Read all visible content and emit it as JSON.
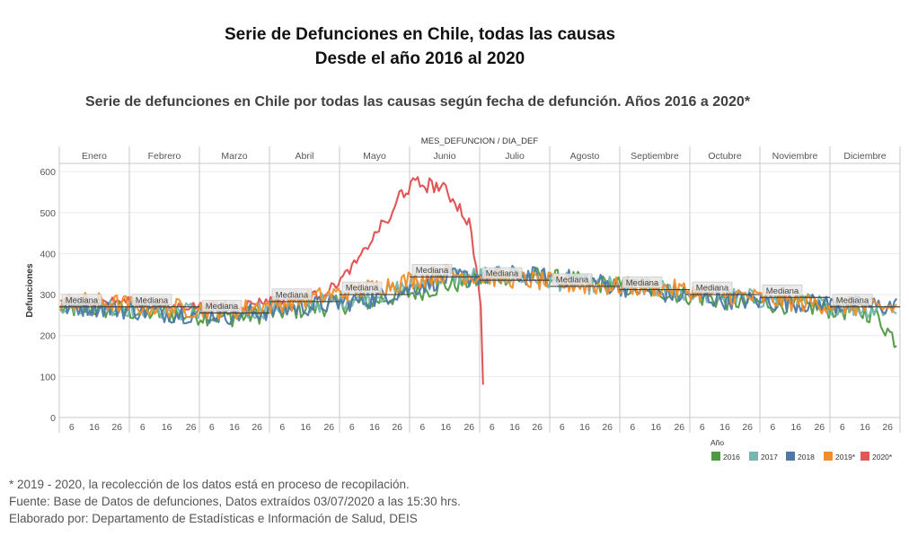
{
  "titles": {
    "main_line1": "Serie de Defunciones en Chile, todas las causas",
    "main_line2": "Desde el año 2016 al 2020",
    "subtitle": "Serie de defunciones en Chile por todas las causas según fecha de defunción. Años 2016 a 2020*"
  },
  "notes": {
    "line1": "* 2019 - 2020, la recolección de los datos está en proceso de recopilación.",
    "line2": "Fuente: Base de Datos de defunciones, Datos extraídos 03/07/2020 a las 15:30 hrs.",
    "line3": "Elaborado por: Departamento de Estadísticas e Información de Salud, DEIS"
  },
  "chart_data": {
    "type": "line",
    "title": "MES_DEFUNCION / DIA_DEF",
    "ylabel": "Defunciones",
    "xlabel": "",
    "ylim": [
      0,
      620
    ],
    "yticks": [
      0,
      100,
      200,
      300,
      400,
      500,
      600
    ],
    "months": [
      "Enero",
      "Febrero",
      "Marzo",
      "Abril",
      "Mayo",
      "Junio",
      "Julio",
      "Agosto",
      "Septiembre",
      "Octubre",
      "Noviembre",
      "Diciembre"
    ],
    "day_ticks": [
      6,
      16,
      26
    ],
    "median_label": "Mediana",
    "monthly_median": [
      270,
      270,
      255,
      283,
      300,
      343,
      335,
      320,
      312,
      300,
      293,
      270
    ],
    "legend_title": "Año",
    "series": [
      {
        "name": "2016",
        "color": "#4e9a43",
        "month_means": [
          265,
          253,
          245,
          265,
          285,
          322,
          350,
          330,
          310,
          285,
          275,
          255
        ],
        "last_day": 366
      },
      {
        "name": "2017",
        "color": "#76b7b2",
        "month_means": [
          275,
          262,
          258,
          275,
          298,
          345,
          345,
          325,
          315,
          295,
          285,
          265
        ],
        "last_day": 365
      },
      {
        "name": "2018",
        "color": "#4e79a7",
        "month_means": [
          270,
          255,
          250,
          270,
          290,
          340,
          348,
          335,
          305,
          288,
          280,
          272
        ],
        "last_day": 365
      },
      {
        "name": "2019*",
        "color": "#f28e2b",
        "month_means": [
          282,
          268,
          262,
          288,
          318,
          352,
          338,
          322,
          318,
          300,
          282,
          268
        ],
        "last_day": 365
      },
      {
        "name": "2020*",
        "color": "#e15759",
        "anchors": [
          [
            1,
            285
          ],
          [
            31,
            283
          ],
          [
            45,
            270
          ],
          [
            60,
            272
          ],
          [
            75,
            270
          ],
          [
            90,
            285
          ],
          [
            105,
            290
          ],
          [
            115,
            305
          ],
          [
            121,
            330
          ],
          [
            130,
            385
          ],
          [
            140,
            470
          ],
          [
            145,
            490
          ],
          [
            148,
            545
          ],
          [
            155,
            570
          ],
          [
            165,
            565
          ],
          [
            172,
            530
          ],
          [
            178,
            475
          ],
          [
            182,
            330
          ],
          [
            183,
            270
          ],
          [
            184,
            80
          ]
        ],
        "last_day": 184
      }
    ]
  }
}
